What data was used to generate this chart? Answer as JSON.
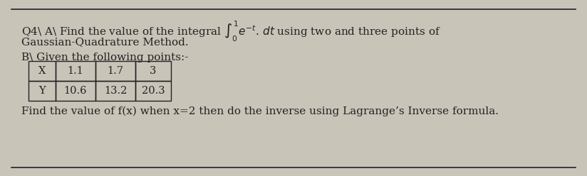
{
  "bg_color": "#c8c4b8",
  "text_color": "#222222",
  "line1": "Q4\\ A\\ Find the value of the integral $\\int_0^1 e^{-t}.\\, dt$ using two and three points of",
  "line2": "Gaussian-Quadrature Method.",
  "line3": "B\\ Given the following points:-",
  "last_line": "Find the value of f(x) when x=2 then do the inverse using Lagrange’s Inverse formula.",
  "table_headers": [
    "X",
    "1.1",
    "1.7",
    "3"
  ],
  "table_row2": [
    "Y",
    "10.6",
    "13.2",
    "20.3"
  ],
  "fontsize_main": 11.0,
  "fontsize_table": 10.5
}
